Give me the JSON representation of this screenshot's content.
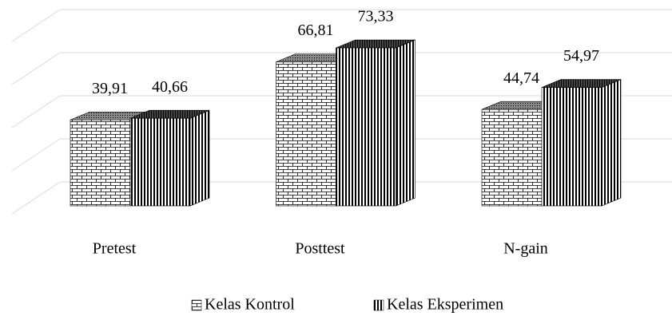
{
  "chart_data": {
    "type": "bar3d",
    "categories": [
      "Pretest",
      "Posttest",
      "N-gain"
    ],
    "series": [
      {
        "name": "Kelas Kontrol",
        "color": "#000000",
        "values": [
          39.91,
          66.81,
          44.74
        ],
        "value_labels": [
          "39,91",
          "66,81",
          "44,74"
        ]
      },
      {
        "name": "Kelas Eksperimen",
        "color": "#000000",
        "values": [
          40.66,
          73.33,
          54.97
        ],
        "value_labels": [
          "40,66",
          "73,33",
          "54,97"
        ]
      }
    ],
    "ylim": [
      0,
      80
    ],
    "yticks": [
      0,
      20,
      40,
      60,
      80
    ],
    "grid": true,
    "legend": "bottom"
  }
}
